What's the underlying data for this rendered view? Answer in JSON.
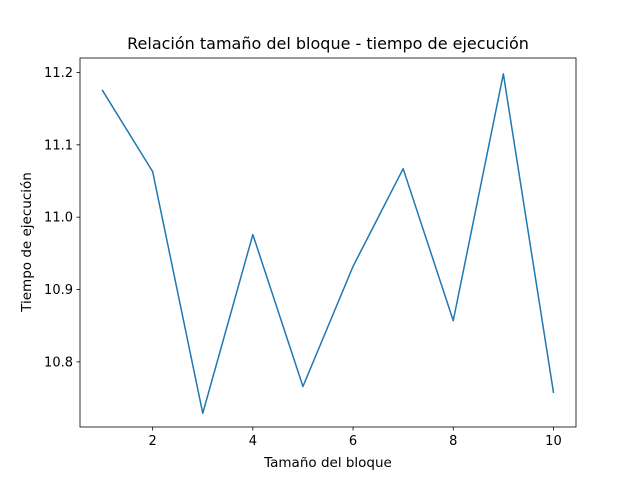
{
  "chart_data": {
    "type": "line",
    "title": "Relación tamaño del bloque - tiempo de ejecución",
    "xlabel": "Tamaño del bloque",
    "ylabel": "Tiempo de ejecución",
    "xlim": [
      0.55,
      10.45
    ],
    "ylim": [
      10.71,
      11.22
    ],
    "x_ticks": [
      2,
      4,
      6,
      8,
      10
    ],
    "x_tick_labels": [
      "2",
      "4",
      "6",
      "8",
      "10"
    ],
    "y_ticks": [
      10.8,
      10.9,
      11.0,
      11.1,
      11.2
    ],
    "y_tick_labels": [
      "10.8",
      "10.9",
      "11.0",
      "11.1",
      "11.2"
    ],
    "grid": false,
    "series": [
      {
        "color": "#1f77b4",
        "x": [
          1,
          2,
          3,
          4,
          5,
          6,
          7,
          8,
          9,
          10
        ],
        "y": [
          11.175,
          11.063,
          10.729,
          10.976,
          10.766,
          10.932,
          11.067,
          10.857,
          11.198,
          10.758
        ]
      }
    ]
  }
}
